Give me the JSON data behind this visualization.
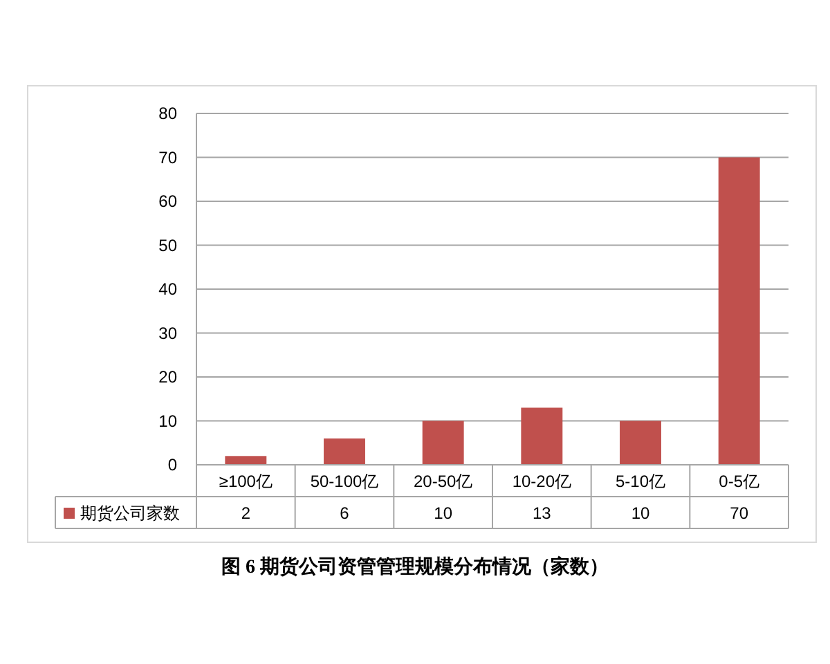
{
  "chart_data": {
    "type": "bar",
    "title": "图 6  期货公司资管管理规模分布情况（家数）",
    "categories": [
      "≥100亿",
      "50-100亿",
      "20-50亿",
      "10-20亿",
      "5-10亿",
      "0-5亿"
    ],
    "series": [
      {
        "name": "期货公司家数",
        "color": "#c0504d",
        "values": [
          2,
          6,
          10,
          13,
          10,
          70
        ]
      }
    ],
    "ylim": [
      0,
      80
    ],
    "yticks": [
      0,
      10,
      20,
      30,
      40,
      50,
      60,
      70,
      80
    ],
    "grid": "y",
    "data_labels": true,
    "legend": "bottom"
  }
}
